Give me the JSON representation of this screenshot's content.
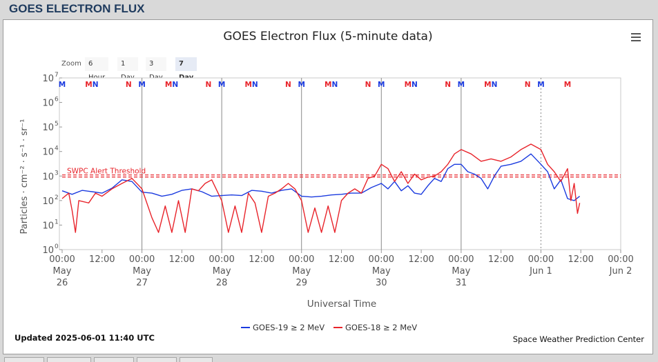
{
  "header": {
    "title": "GOES ELECTRON FLUX"
  },
  "chart_title": "GOES Electron Flux (5-minute data)",
  "zoom": {
    "label": "Zoom",
    "buttons": [
      "6 Hour",
      "1 Day",
      "3 Day",
      "7 Day"
    ],
    "active": "7 Day"
  },
  "updated": "Updated 2025-06-01 11:40 UTC",
  "credit": "Space Weather Prediction Center",
  "chart_data": {
    "type": "line",
    "title": "GOES Electron Flux (5-minute data)",
    "xlabel": "Universal Time",
    "ylabel": "Particles · cm⁻² · s⁻¹ · sr⁻¹",
    "y_scale": "log",
    "ylim": [
      1,
      10000000
    ],
    "xlim": [
      "2025-05-26 00:00",
      "2025-06-02 00:00"
    ],
    "y_ticks": [
      {
        "base": "10",
        "exp": "0"
      },
      {
        "base": "10",
        "exp": "1"
      },
      {
        "base": "10",
        "exp": "2"
      },
      {
        "base": "10",
        "exp": "3"
      },
      {
        "base": "10",
        "exp": "4"
      },
      {
        "base": "10",
        "exp": "5"
      },
      {
        "base": "10",
        "exp": "6"
      },
      {
        "base": "10",
        "exp": "7"
      }
    ],
    "x_ticks": [
      {
        "time": "00:00",
        "date1": "May",
        "date2": "26"
      },
      {
        "time": "12:00",
        "date1": "",
        "date2": ""
      },
      {
        "time": "00:00",
        "date1": "May",
        "date2": "27"
      },
      {
        "time": "12:00",
        "date1": "",
        "date2": ""
      },
      {
        "time": "00:00",
        "date1": "May",
        "date2": "28"
      },
      {
        "time": "12:00",
        "date1": "",
        "date2": ""
      },
      {
        "time": "00:00",
        "date1": "May",
        "date2": "29"
      },
      {
        "time": "12:00",
        "date1": "",
        "date2": ""
      },
      {
        "time": "00:00",
        "date1": "May",
        "date2": "30"
      },
      {
        "time": "12:00",
        "date1": "",
        "date2": ""
      },
      {
        "time": "00:00",
        "date1": "May",
        "date2": "31"
      },
      {
        "time": "12:00",
        "date1": "",
        "date2": ""
      },
      {
        "time": "00:00",
        "date1": "Jun 1",
        "date2": ""
      },
      {
        "time": "12:00",
        "date1": "",
        "date2": ""
      },
      {
        "time": "00:00",
        "date1": "Jun 2",
        "date2": ""
      }
    ],
    "threshold": {
      "label": "SWPC Alert Threshold",
      "value": 1000,
      "color": "#e8232a"
    },
    "noon_midnight_markers": [
      {
        "time": "2025-05-26 00:00",
        "label": "M",
        "color": "#1a3adf"
      },
      {
        "time": "2025-05-26 08:00",
        "label": "M",
        "color": "#e8232a"
      },
      {
        "time": "2025-05-26 10:00",
        "label": "N",
        "color": "#1a3adf"
      },
      {
        "time": "2025-05-26 20:00",
        "label": "N",
        "color": "#e8232a"
      },
      {
        "time": "2025-05-27 00:00",
        "label": "M",
        "color": "#1a3adf"
      },
      {
        "time": "2025-05-27 08:00",
        "label": "M",
        "color": "#e8232a"
      },
      {
        "time": "2025-05-27 10:00",
        "label": "N",
        "color": "#1a3adf"
      },
      {
        "time": "2025-05-27 20:00",
        "label": "N",
        "color": "#e8232a"
      },
      {
        "time": "2025-05-28 00:00",
        "label": "M",
        "color": "#1a3adf"
      },
      {
        "time": "2025-05-28 08:00",
        "label": "M",
        "color": "#e8232a"
      },
      {
        "time": "2025-05-28 10:00",
        "label": "N",
        "color": "#1a3adf"
      },
      {
        "time": "2025-05-28 20:00",
        "label": "N",
        "color": "#e8232a"
      },
      {
        "time": "2025-05-29 00:00",
        "label": "M",
        "color": "#1a3adf"
      },
      {
        "time": "2025-05-29 08:00",
        "label": "M",
        "color": "#e8232a"
      },
      {
        "time": "2025-05-29 10:00",
        "label": "N",
        "color": "#1a3adf"
      },
      {
        "time": "2025-05-29 20:00",
        "label": "N",
        "color": "#e8232a"
      },
      {
        "time": "2025-05-30 00:00",
        "label": "M",
        "color": "#1a3adf"
      },
      {
        "time": "2025-05-30 08:00",
        "label": "M",
        "color": "#e8232a"
      },
      {
        "time": "2025-05-30 10:00",
        "label": "N",
        "color": "#1a3adf"
      },
      {
        "time": "2025-05-30 20:00",
        "label": "N",
        "color": "#e8232a"
      },
      {
        "time": "2025-05-31 00:00",
        "label": "M",
        "color": "#1a3adf"
      },
      {
        "time": "2025-05-31 08:00",
        "label": "M",
        "color": "#e8232a"
      },
      {
        "time": "2025-05-31 10:00",
        "label": "N",
        "color": "#1a3adf"
      },
      {
        "time": "2025-05-31 20:00",
        "label": "N",
        "color": "#e8232a"
      },
      {
        "time": "2025-06-01 00:00",
        "label": "M",
        "color": "#1a3adf"
      },
      {
        "time": "2025-06-01 08:00",
        "label": "M",
        "color": "#e8232a"
      }
    ],
    "series": [
      {
        "name": "GOES-19 ≥ 2 MeV",
        "color": "#1a3adf",
        "points": [
          [
            "2025-05-26 00:00",
            250
          ],
          [
            "2025-05-26 03:00",
            180
          ],
          [
            "2025-05-26 06:00",
            260
          ],
          [
            "2025-05-26 09:00",
            230
          ],
          [
            "2025-05-26 12:00",
            200
          ],
          [
            "2025-05-26 15:00",
            320
          ],
          [
            "2025-05-26 18:00",
            700
          ],
          [
            "2025-05-26 21:00",
            600
          ],
          [
            "2025-05-27 00:00",
            220
          ],
          [
            "2025-05-27 03:00",
            200
          ],
          [
            "2025-05-27 06:00",
            150
          ],
          [
            "2025-05-27 09:00",
            180
          ],
          [
            "2025-05-27 12:00",
            260
          ],
          [
            "2025-05-27 15:00",
            300
          ],
          [
            "2025-05-27 18:00",
            230
          ],
          [
            "2025-05-27 21:00",
            150
          ],
          [
            "2025-05-28 00:00",
            160
          ],
          [
            "2025-05-28 03:00",
            170
          ],
          [
            "2025-05-28 06:00",
            160
          ],
          [
            "2025-05-28 09:00",
            260
          ],
          [
            "2025-05-28 12:00",
            240
          ],
          [
            "2025-05-28 15:00",
            200
          ],
          [
            "2025-05-28 18:00",
            260
          ],
          [
            "2025-05-28 21:00",
            300
          ],
          [
            "2025-05-29 00:00",
            150
          ],
          [
            "2025-05-29 03:00",
            140
          ],
          [
            "2025-05-29 06:00",
            150
          ],
          [
            "2025-05-29 09:00",
            170
          ],
          [
            "2025-05-29 12:00",
            180
          ],
          [
            "2025-05-29 15:00",
            200
          ],
          [
            "2025-05-29 18:00",
            200
          ],
          [
            "2025-05-29 21:00",
            340
          ],
          [
            "2025-05-30 00:00",
            500
          ],
          [
            "2025-05-30 02:00",
            300
          ],
          [
            "2025-05-30 04:00",
            600
          ],
          [
            "2025-05-30 06:00",
            250
          ],
          [
            "2025-05-30 08:00",
            400
          ],
          [
            "2025-05-30 10:00",
            200
          ],
          [
            "2025-05-30 12:00",
            180
          ],
          [
            "2025-05-30 14:00",
            400
          ],
          [
            "2025-05-30 16:00",
            800
          ],
          [
            "2025-05-30 18:00",
            600
          ],
          [
            "2025-05-30 20:00",
            2000
          ],
          [
            "2025-05-30 22:00",
            3000
          ],
          [
            "2025-05-31 00:00",
            3000
          ],
          [
            "2025-05-31 02:00",
            1500
          ],
          [
            "2025-05-31 04:00",
            1200
          ],
          [
            "2025-05-31 06:00",
            800
          ],
          [
            "2025-05-31 08:00",
            300
          ],
          [
            "2025-05-31 10:00",
            1000
          ],
          [
            "2025-05-31 12:00",
            2500
          ],
          [
            "2025-05-31 15:00",
            3000
          ],
          [
            "2025-05-31 18:00",
            4000
          ],
          [
            "2025-05-31 21:00",
            8000
          ],
          [
            "2025-06-01 00:00",
            3000
          ],
          [
            "2025-06-01 02:00",
            1500
          ],
          [
            "2025-06-01 04:00",
            300
          ],
          [
            "2025-06-01 06:00",
            700
          ],
          [
            "2025-06-01 08:00",
            120
          ],
          [
            "2025-06-01 10:00",
            100
          ],
          [
            "2025-06-01 11:40",
            150
          ]
        ]
      },
      {
        "name": "GOES-18 ≥ 2 MeV",
        "color": "#e8232a",
        "points": [
          [
            "2025-05-26 00:00",
            120
          ],
          [
            "2025-05-26 02:00",
            200
          ],
          [
            "2025-05-26 03:00",
            40
          ],
          [
            "2025-05-26 04:00",
            5
          ],
          [
            "2025-05-26 05:00",
            100
          ],
          [
            "2025-05-26 08:00",
            80
          ],
          [
            "2025-05-26 10:00",
            200
          ],
          [
            "2025-05-26 12:00",
            150
          ],
          [
            "2025-05-26 15:00",
            300
          ],
          [
            "2025-05-26 18:00",
            500
          ],
          [
            "2025-05-26 21:00",
            800
          ],
          [
            "2025-05-27 00:00",
            300
          ],
          [
            "2025-05-27 03:00",
            20
          ],
          [
            "2025-05-27 05:00",
            5
          ],
          [
            "2025-05-27 07:00",
            60
          ],
          [
            "2025-05-27 09:00",
            5
          ],
          [
            "2025-05-27 11:00",
            100
          ],
          [
            "2025-05-27 13:00",
            5
          ],
          [
            "2025-05-27 15:00",
            300
          ],
          [
            "2025-05-27 17:00",
            250
          ],
          [
            "2025-05-27 19:00",
            500
          ],
          [
            "2025-05-27 21:00",
            700
          ],
          [
            "2025-05-28 00:00",
            100
          ],
          [
            "2025-05-28 02:00",
            5
          ],
          [
            "2025-05-28 04:00",
            60
          ],
          [
            "2025-05-28 06:00",
            5
          ],
          [
            "2025-05-28 08:00",
            200
          ],
          [
            "2025-05-28 10:00",
            80
          ],
          [
            "2025-05-28 12:00",
            5
          ],
          [
            "2025-05-28 14:00",
            150
          ],
          [
            "2025-05-28 16:00",
            200
          ],
          [
            "2025-05-28 18:00",
            300
          ],
          [
            "2025-05-28 20:00",
            500
          ],
          [
            "2025-05-28 22:00",
            300
          ],
          [
            "2025-05-29 00:00",
            100
          ],
          [
            "2025-05-29 02:00",
            5
          ],
          [
            "2025-05-29 04:00",
            50
          ],
          [
            "2025-05-29 06:00",
            5
          ],
          [
            "2025-05-29 08:00",
            60
          ],
          [
            "2025-05-29 10:00",
            5
          ],
          [
            "2025-05-29 12:00",
            100
          ],
          [
            "2025-05-29 14:00",
            200
          ],
          [
            "2025-05-29 16:00",
            300
          ],
          [
            "2025-05-29 18:00",
            200
          ],
          [
            "2025-05-29 20:00",
            800
          ],
          [
            "2025-05-29 22:00",
            1000
          ],
          [
            "2025-05-30 00:00",
            3000
          ],
          [
            "2025-05-30 02:00",
            2000
          ],
          [
            "2025-05-30 04:00",
            600
          ],
          [
            "2025-05-30 06:00",
            1500
          ],
          [
            "2025-05-30 08:00",
            500
          ],
          [
            "2025-05-30 10:00",
            1200
          ],
          [
            "2025-05-30 12:00",
            700
          ],
          [
            "2025-05-30 14:00",
            900
          ],
          [
            "2025-05-30 16:00",
            1000
          ],
          [
            "2025-05-30 18:00",
            1500
          ],
          [
            "2025-05-30 20:00",
            3000
          ],
          [
            "2025-05-30 22:00",
            8000
          ],
          [
            "2025-05-31 00:00",
            12000
          ],
          [
            "2025-05-31 03:00",
            8000
          ],
          [
            "2025-05-31 06:00",
            4000
          ],
          [
            "2025-05-31 09:00",
            5000
          ],
          [
            "2025-05-31 12:00",
            4000
          ],
          [
            "2025-05-31 15:00",
            6000
          ],
          [
            "2025-05-31 18:00",
            12000
          ],
          [
            "2025-05-31 21:00",
            20000
          ],
          [
            "2025-06-01 00:00",
            12000
          ],
          [
            "2025-06-01 02:00",
            3000
          ],
          [
            "2025-06-01 04:00",
            1500
          ],
          [
            "2025-06-01 06:00",
            600
          ],
          [
            "2025-06-01 08:00",
            2000
          ],
          [
            "2025-06-01 09:00",
            100
          ],
          [
            "2025-06-01 10:00",
            500
          ],
          [
            "2025-06-01 11:00",
            30
          ],
          [
            "2025-06-01 11:40",
            80
          ]
        ]
      }
    ]
  }
}
